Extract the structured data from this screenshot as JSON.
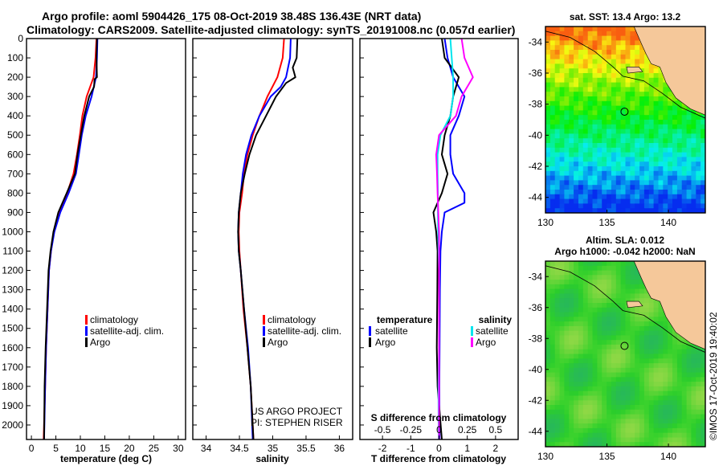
{
  "header": {
    "title_line1": "Argo profile: aoml 5904426_175 08-Oct-2019 38.48S 136.43E (NRT data)",
    "title_line2": "Climatology: CARS2009. Satellite-adjusted climatology: synTS_20191008.nc (0.057d earlier)"
  },
  "colors": {
    "climatology": "#ff0000",
    "satellite": "#0000ff",
    "argo": "#000000",
    "salinity_satellite": "#00e5ee",
    "salinity_argo": "#ff00ff",
    "land": "#f5c89a"
  },
  "chart_data": [
    {
      "type": "line",
      "panel": "temperature",
      "xlabel": "temperature (deg C)",
      "ylabel": "",
      "xlim": [
        -1,
        31.5
      ],
      "ylim": [
        2075,
        0
      ],
      "xticks": [
        "0",
        "5",
        "10",
        "15",
        "20",
        "25",
        "30"
      ],
      "xtick_values": [
        0,
        5,
        10,
        15,
        20,
        25,
        30
      ],
      "yticks": [
        "0",
        "100",
        "200",
        "300",
        "400",
        "500",
        "600",
        "700",
        "800",
        "900",
        "1000",
        "1100",
        "1200",
        "1300",
        "1400",
        "1500",
        "1600",
        "1700",
        "1800",
        "1900",
        "2000"
      ],
      "ytick_values": [
        0,
        100,
        200,
        300,
        400,
        500,
        600,
        700,
        800,
        900,
        1000,
        1100,
        1200,
        1300,
        1400,
        1500,
        1600,
        1700,
        1800,
        1900,
        2000
      ],
      "legend": [
        "climatology",
        "satellite-adj. clim.",
        "Argo"
      ],
      "series": [
        {
          "name": "climatology",
          "color": "#ff0000",
          "points": [
            [
              13.3,
              0
            ],
            [
              13.1,
              100
            ],
            [
              12.7,
              200
            ],
            [
              11.3,
              300
            ],
            [
              10.4,
              400
            ],
            [
              9.9,
              500
            ],
            [
              9.3,
              600
            ],
            [
              8.6,
              700
            ],
            [
              7.3,
              800
            ],
            [
              5.7,
              900
            ],
            [
              4.6,
              1000
            ],
            [
              4.0,
              1100
            ],
            [
              3.6,
              1200
            ],
            [
              3.3,
              1400
            ],
            [
              3.0,
              1600
            ],
            [
              2.8,
              1800
            ],
            [
              2.5,
              2075
            ]
          ]
        },
        {
          "name": "satellite-adj. clim.",
          "color": "#0000ff",
          "points": [
            [
              13.5,
              0
            ],
            [
              13.4,
              100
            ],
            [
              13.2,
              200
            ],
            [
              12.3,
              300
            ],
            [
              11.1,
              400
            ],
            [
              10.3,
              500
            ],
            [
              9.7,
              600
            ],
            [
              9.1,
              700
            ],
            [
              7.6,
              800
            ],
            [
              5.9,
              900
            ],
            [
              4.7,
              1000
            ],
            [
              4.0,
              1100
            ],
            [
              3.6,
              1200
            ],
            [
              3.3,
              1400
            ],
            [
              3.0,
              1600
            ],
            [
              2.8,
              1800
            ],
            [
              2.6,
              2075
            ]
          ]
        },
        {
          "name": "Argo",
          "color": "#000000",
          "points": [
            [
              13.4,
              0
            ],
            [
              13.3,
              100
            ],
            [
              13.4,
              200
            ],
            [
              12.9,
              210
            ],
            [
              12.8,
              250
            ],
            [
              11.8,
              300
            ],
            [
              10.8,
              400
            ],
            [
              10.1,
              500
            ],
            [
              9.4,
              600
            ],
            [
              8.9,
              700
            ],
            [
              7.2,
              800
            ],
            [
              5.5,
              900
            ],
            [
              4.5,
              1000
            ],
            [
              3.9,
              1100
            ],
            [
              3.5,
              1200
            ],
            [
              3.2,
              1400
            ],
            [
              2.9,
              1600
            ],
            [
              2.7,
              1800
            ],
            [
              2.6,
              2075
            ]
          ]
        }
      ]
    },
    {
      "type": "line",
      "panel": "salinity",
      "xlabel": "salinity",
      "xlim": [
        33.8,
        36.2
      ],
      "ylim": [
        2075,
        0
      ],
      "xticks": [
        "34",
        "34.5",
        "35",
        "35.5",
        "36"
      ],
      "xtick_values": [
        34,
        34.5,
        35,
        35.5,
        36
      ],
      "legend": [
        "climatology",
        "satellite-adj. clim.",
        "Argo"
      ],
      "annotation": [
        "US ARGO PROJECT",
        "PI: STEPHEN RISER"
      ],
      "series": [
        {
          "name": "climatology",
          "color": "#ff0000",
          "points": [
            [
              35.17,
              0
            ],
            [
              35.15,
              100
            ],
            [
              35.07,
              200
            ],
            [
              34.92,
              300
            ],
            [
              34.8,
              400
            ],
            [
              34.7,
              500
            ],
            [
              34.62,
              600
            ],
            [
              34.57,
              700
            ],
            [
              34.54,
              800
            ],
            [
              34.5,
              900
            ],
            [
              34.49,
              1000
            ],
            [
              34.5,
              1100
            ],
            [
              34.52,
              1200
            ],
            [
              34.56,
              1400
            ],
            [
              34.62,
              1600
            ],
            [
              34.67,
              1800
            ],
            [
              34.71,
              2075
            ]
          ]
        },
        {
          "name": "satellite-adj. clim.",
          "color": "#0000ff",
          "points": [
            [
              35.27,
              0
            ],
            [
              35.26,
              100
            ],
            [
              35.2,
              200
            ],
            [
              35.12,
              250
            ],
            [
              34.97,
              300
            ],
            [
              34.8,
              400
            ],
            [
              34.68,
              500
            ],
            [
              34.6,
              600
            ],
            [
              34.55,
              700
            ],
            [
              34.52,
              800
            ],
            [
              34.49,
              900
            ],
            [
              34.48,
              1000
            ],
            [
              34.49,
              1100
            ],
            [
              34.52,
              1200
            ],
            [
              34.57,
              1400
            ],
            [
              34.63,
              1600
            ],
            [
              34.67,
              1800
            ],
            [
              34.7,
              2075
            ]
          ]
        },
        {
          "name": "Argo",
          "color": "#000000",
          "points": [
            [
              35.37,
              0
            ],
            [
              35.36,
              100
            ],
            [
              35.3,
              150
            ],
            [
              35.34,
              200
            ],
            [
              35.2,
              230
            ],
            [
              35.05,
              300
            ],
            [
              34.9,
              400
            ],
            [
              34.75,
              500
            ],
            [
              34.65,
              600
            ],
            [
              34.58,
              700
            ],
            [
              34.52,
              800
            ],
            [
              34.49,
              900
            ],
            [
              34.48,
              1000
            ],
            [
              34.49,
              1100
            ],
            [
              34.52,
              1200
            ],
            [
              34.57,
              1400
            ],
            [
              34.62,
              1600
            ],
            [
              34.67,
              1800
            ],
            [
              34.71,
              2075
            ]
          ]
        }
      ]
    },
    {
      "type": "line",
      "panel": "difference",
      "xlabel": "T difference from climatology",
      "xlabel_top": "S difference from climatology",
      "xlim": [
        -2.8,
        2.8
      ],
      "ylim": [
        2075,
        0
      ],
      "xticks": [
        "-2",
        "-1",
        "0",
        "1",
        "2"
      ],
      "xtick_values": [
        -2,
        -1,
        0,
        1,
        2
      ],
      "xticks_top": [
        "-0.5",
        "-0.25",
        "0",
        "0.25",
        "0.5"
      ],
      "xtick_top_values": [
        -2,
        -1,
        0,
        1,
        2
      ],
      "legend_left_title": "temperature",
      "legend_right_title": "salinity",
      "legend_left": [
        "satellite",
        "Argo"
      ],
      "legend_right": [
        "satellite",
        "Argo"
      ],
      "series": [
        {
          "name": "satellite",
          "color": "#0000ff",
          "points": [
            [
              0.2,
              0
            ],
            [
              0.3,
              100
            ],
            [
              0.5,
              200
            ],
            [
              0.9,
              300
            ],
            [
              0.7,
              400
            ],
            [
              0.4,
              500
            ],
            [
              0.4,
              600
            ],
            [
              0.5,
              700
            ],
            [
              0.9,
              800
            ],
            [
              0.9,
              850
            ],
            [
              0.2,
              900
            ],
            [
              0.1,
              1000
            ],
            [
              0.05,
              1100
            ],
            [
              0.03,
              1300
            ],
            [
              0.02,
              1600
            ],
            [
              0.01,
              1800
            ],
            [
              0.02,
              2075
            ]
          ]
        },
        {
          "name": "Argo",
          "color": "#000000",
          "points": [
            [
              0.1,
              0
            ],
            [
              0.2,
              100
            ],
            [
              0.7,
              200
            ],
            [
              0.5,
              300
            ],
            [
              0.4,
              400
            ],
            [
              0.2,
              500
            ],
            [
              0.1,
              600
            ],
            [
              0.3,
              700
            ],
            [
              0.1,
              800
            ],
            [
              -0.2,
              900
            ],
            [
              -0.1,
              1000
            ],
            [
              -0.05,
              1100
            ],
            [
              -0.06,
              1300
            ],
            [
              -0.08,
              1600
            ],
            [
              -0.05,
              1800
            ],
            [
              0.1,
              2075
            ]
          ]
        },
        {
          "name": "satellite",
          "color": "#00e5ee",
          "points": [
            [
              0.4,
              0
            ],
            [
              0.45,
              100
            ],
            [
              0.5,
              200
            ],
            [
              0.5,
              300
            ],
            [
              0.4,
              400
            ],
            [
              0.05,
              500
            ],
            [
              -0.05,
              600
            ],
            [
              -0.05,
              700
            ],
            [
              -0.04,
              800
            ],
            [
              -0.04,
              900
            ],
            [
              -0.03,
              1000
            ],
            [
              0.0,
              1200
            ],
            [
              0.0,
              1600
            ],
            [
              -0.02,
              1800
            ],
            [
              -0.01,
              2075
            ]
          ]
        },
        {
          "name": "Argo",
          "color": "#ff00ff",
          "points": [
            [
              0.8,
              0
            ],
            [
              0.9,
              100
            ],
            [
              1.2,
              200
            ],
            [
              0.8,
              300
            ],
            [
              0.6,
              400
            ],
            [
              0.0,
              500
            ],
            [
              -0.1,
              600
            ],
            [
              -0.07,
              700
            ],
            [
              -0.05,
              800
            ],
            [
              0.0,
              1000
            ],
            [
              0.0,
              1600
            ],
            [
              0.0,
              2075
            ]
          ]
        }
      ]
    },
    {
      "type": "heatmap",
      "panel": "sst_map",
      "title": "sat. SST: 13.4 Argo: 13.2",
      "xlim": [
        130,
        143
      ],
      "ylim": [
        -45,
        -33
      ],
      "xticks": [
        "130",
        "135",
        "140"
      ],
      "xtick_values": [
        130,
        135,
        140
      ],
      "yticks": [
        "-34",
        "-36",
        "-38",
        "-40",
        "-42",
        "-44"
      ],
      "ytick_values": [
        -34,
        -36,
        -38,
        -40,
        -42,
        -44
      ],
      "marker": [
        136.43,
        -38.48
      ]
    },
    {
      "type": "heatmap",
      "panel": "sla_map",
      "title_line1": "Altim. SLA: 0.012",
      "title_line2": "Argo h1000: -0.042 h2000: NaN",
      "xlim": [
        130,
        143
      ],
      "ylim": [
        -45,
        -33
      ],
      "xticks": [
        "130",
        "135",
        "140"
      ],
      "xtick_values": [
        130,
        135,
        140
      ],
      "yticks": [
        "-34",
        "-36",
        "-38",
        "-40",
        "-42",
        "-44"
      ],
      "ytick_values": [
        -34,
        -36,
        -38,
        -40,
        -42,
        -44
      ],
      "marker": [
        136.43,
        -38.48
      ]
    }
  ],
  "credit": "©IMOS 17-Oct-2019 19:40:02"
}
